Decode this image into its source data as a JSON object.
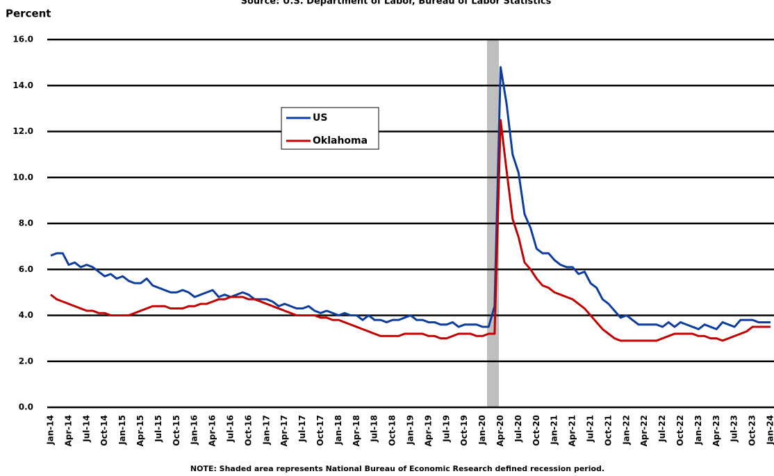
{
  "chart_data": {
    "type": "line",
    "source": "Source: U.S. Department of Labor, Bureau of Labor Statistics",
    "ylabel": "Percent",
    "note": "NOTE: Shaded area represents National Bureau of Economic Research defined recession period.",
    "categories": [
      "Jan-14",
      null,
      null,
      "Apr-14",
      null,
      null,
      "Jul-14",
      null,
      null,
      "Oct-14",
      null,
      null,
      "Jan-15",
      null,
      null,
      "Apr-15",
      null,
      null,
      "Jul-15",
      null,
      null,
      "Oct-15",
      null,
      null,
      "Jan-16",
      null,
      null,
      "Apr-16",
      null,
      null,
      "Jul-16",
      null,
      null,
      "Oct-16",
      null,
      null,
      "Jan-17",
      null,
      null,
      "Apr-17",
      null,
      null,
      "Jul-17",
      null,
      null,
      "Oct-17",
      null,
      null,
      "Jan-18",
      null,
      null,
      "Apr-18",
      null,
      null,
      "Jul-18",
      null,
      null,
      "Oct-18",
      null,
      null,
      "Jan-19",
      null,
      null,
      "Apr-19",
      null,
      null,
      "Jul-19",
      null,
      null,
      "Oct-19",
      null,
      null,
      "Jan-20",
      null,
      null,
      "Apr-20",
      null,
      null,
      "Jul-20",
      null,
      null,
      "Oct-20",
      null,
      null,
      "Jan-21",
      null,
      null,
      "Apr-21",
      null,
      null,
      "Jul-21",
      null,
      null,
      "Oct-21",
      null,
      null,
      "Jan-22",
      null,
      null,
      "Apr-22",
      null,
      null,
      "Jul-22",
      null,
      null,
      "Oct-22",
      null,
      null,
      "Jan-23",
      null,
      null,
      "Apr-23",
      null,
      null,
      "Jul-23",
      null,
      null,
      "Oct-23",
      null,
      null,
      "Jan-24"
    ],
    "series": [
      {
        "name": "US",
        "color": "#0b3c9e",
        "values": [
          6.6,
          6.7,
          6.7,
          6.2,
          6.3,
          6.1,
          6.2,
          6.1,
          5.9,
          5.7,
          5.8,
          5.6,
          5.7,
          5.5,
          5.4,
          5.4,
          5.6,
          5.3,
          5.2,
          5.1,
          5.0,
          5.0,
          5.1,
          5.0,
          4.8,
          4.9,
          5.0,
          5.1,
          4.8,
          4.9,
          4.8,
          4.9,
          5.0,
          4.9,
          4.7,
          4.7,
          4.7,
          4.6,
          4.4,
          4.5,
          4.4,
          4.3,
          4.3,
          4.4,
          4.2,
          4.1,
          4.2,
          4.1,
          4.0,
          4.1,
          4.0,
          4.0,
          3.8,
          4.0,
          3.8,
          3.8,
          3.7,
          3.8,
          3.8,
          3.9,
          4.0,
          3.8,
          3.8,
          3.7,
          3.7,
          3.6,
          3.6,
          3.7,
          3.5,
          3.6,
          3.6,
          3.6,
          3.5,
          3.5,
          4.4,
          14.8,
          13.2,
          11.0,
          10.2,
          8.4,
          7.8,
          6.9,
          6.7,
          6.7,
          6.4,
          6.2,
          6.1,
          6.1,
          5.8,
          5.9,
          5.4,
          5.2,
          4.7,
          4.5,
          4.2,
          3.9,
          4.0,
          3.8,
          3.6,
          3.6,
          3.6,
          3.6,
          3.5,
          3.7,
          3.5,
          3.7,
          3.6,
          3.5,
          3.4,
          3.6,
          3.5,
          3.4,
          3.7,
          3.6,
          3.5,
          3.8,
          3.8,
          3.8,
          3.7,
          3.7,
          3.7
        ]
      },
      {
        "name": "Oklahoma",
        "color": "#c00000",
        "values": [
          4.9,
          4.7,
          4.6,
          4.5,
          4.4,
          4.3,
          4.2,
          4.2,
          4.1,
          4.1,
          4.0,
          4.0,
          4.0,
          4.0,
          4.1,
          4.2,
          4.3,
          4.4,
          4.4,
          4.4,
          4.3,
          4.3,
          4.3,
          4.4,
          4.4,
          4.5,
          4.5,
          4.6,
          4.7,
          4.7,
          4.8,
          4.8,
          4.8,
          4.7,
          4.7,
          4.6,
          4.5,
          4.4,
          4.3,
          4.2,
          4.1,
          4.0,
          4.0,
          4.0,
          4.0,
          3.9,
          3.9,
          3.8,
          3.8,
          3.7,
          3.6,
          3.5,
          3.4,
          3.3,
          3.2,
          3.1,
          3.1,
          3.1,
          3.1,
          3.2,
          3.2,
          3.2,
          3.2,
          3.1,
          3.1,
          3.0,
          3.0,
          3.1,
          3.2,
          3.2,
          3.2,
          3.1,
          3.1,
          3.2,
          3.2,
          12.5,
          10.3,
          8.2,
          7.4,
          6.3,
          6.0,
          5.6,
          5.3,
          5.2,
          5.0,
          4.9,
          4.8,
          4.7,
          4.5,
          4.3,
          4.0,
          3.7,
          3.4,
          3.2,
          3.0,
          2.9,
          2.9,
          2.9,
          2.9,
          2.9,
          2.9,
          2.9,
          3.0,
          3.1,
          3.2,
          3.2,
          3.2,
          3.2,
          3.1,
          3.1,
          3.0,
          3.0,
          2.9,
          3.0,
          3.1,
          3.2,
          3.3,
          3.5,
          3.5,
          3.5,
          3.5
        ]
      }
    ],
    "ylim": [
      0,
      16
    ],
    "yticks": [
      {
        "value": 0,
        "label": "0.0"
      },
      {
        "value": 2,
        "label": "2.0"
      },
      {
        "value": 4,
        "label": "4.0"
      },
      {
        "value": 6,
        "label": "6.0"
      },
      {
        "value": 8,
        "label": "8.0"
      },
      {
        "value": 10,
        "label": "10.0"
      },
      {
        "value": 12,
        "label": "12.0"
      },
      {
        "value": 14,
        "label": "14.0"
      },
      {
        "value": 16,
        "label": "16.0"
      }
    ],
    "grid": true
  }
}
